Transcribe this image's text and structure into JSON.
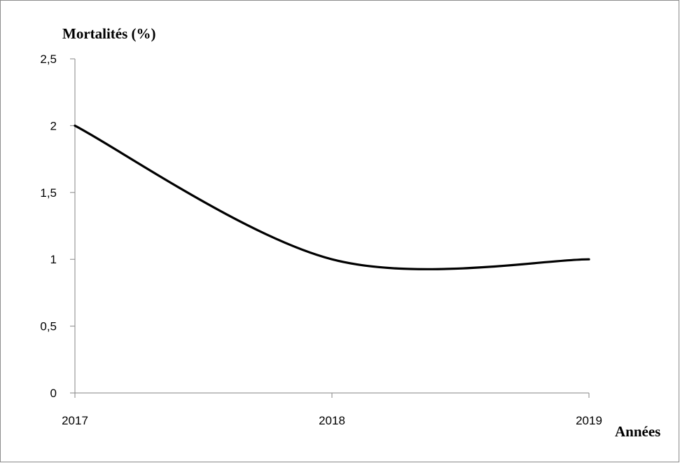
{
  "chart_data": {
    "type": "line",
    "title": "",
    "ylabel": "Mortalités (%)",
    "xlabel": "Années",
    "x": [
      "2017",
      "2018",
      "2019"
    ],
    "series": [
      {
        "values": [
          2,
          1,
          1
        ],
        "color": "#000000"
      }
    ],
    "ylim": [
      0,
      2.5
    ],
    "yticks": [
      0,
      0.5,
      1,
      1.5,
      2,
      2.5
    ],
    "ytick_labels": [
      "0",
      "0,5",
      "1",
      "1,5",
      "2",
      "2,5"
    ],
    "grid": false,
    "legend": "none"
  }
}
